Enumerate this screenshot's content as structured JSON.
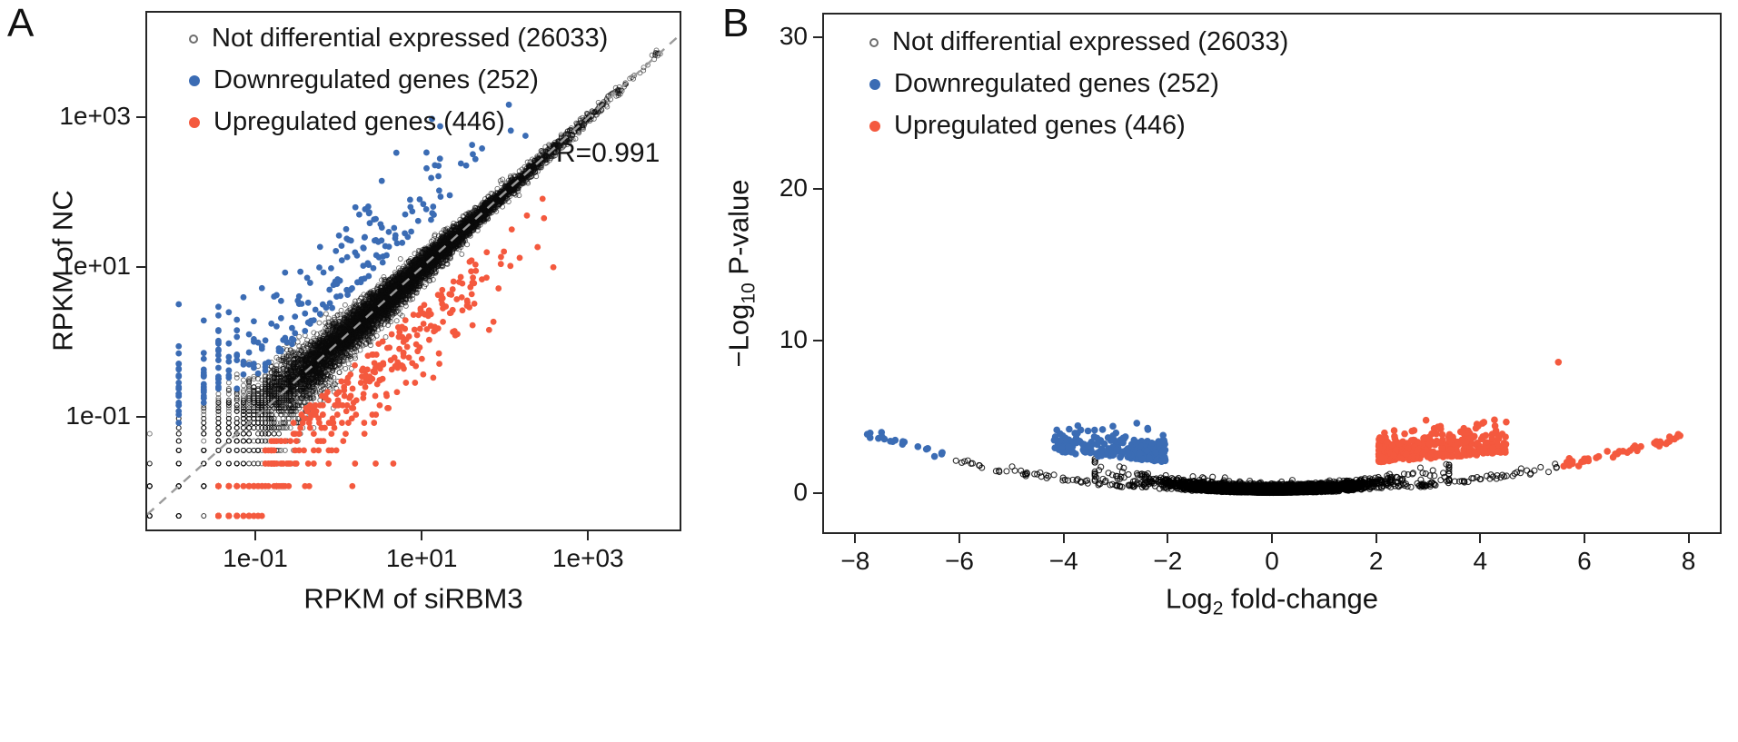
{
  "legend": {
    "items": [
      {
        "label": "Not differential expressed (26033)",
        "marker": "open",
        "color": "#000000"
      },
      {
        "label": "Downregulated genes (252)",
        "marker": "filled",
        "color": "#3b6cb4"
      },
      {
        "label": "Upregulated genes (446)",
        "marker": "filled",
        "color": "#f4593e"
      }
    ]
  },
  "panels": {
    "a": {
      "label": "A",
      "xlabel": {
        "pre": "RPKM of siRBM3"
      },
      "ylabel": {
        "pre": "RPKM of NC"
      },
      "annotation": "R=0.991",
      "x_ticks": [
        {
          "value": -1,
          "label": "1e-01"
        },
        {
          "value": 1,
          "label": "1e+01"
        },
        {
          "value": 3,
          "label": "1e+03"
        }
      ],
      "y_ticks": [
        {
          "value": -1,
          "label": "1e-01"
        },
        {
          "value": 1,
          "label": "1e+01"
        },
        {
          "value": 3,
          "label": "1e+03"
        }
      ]
    },
    "b": {
      "label": "B",
      "xlabel": {
        "pre": "Log",
        "sub": "2",
        "post": " fold-change"
      },
      "ylabel": {
        "pre": "−Log",
        "sub": "10",
        "post": " P-value"
      },
      "x_ticks": [
        {
          "value": -8,
          "label": "−8"
        },
        {
          "value": -6,
          "label": "−6"
        },
        {
          "value": -4,
          "label": "−4"
        },
        {
          "value": -2,
          "label": "−2"
        },
        {
          "value": 0,
          "label": "0"
        },
        {
          "value": 2,
          "label": "2"
        },
        {
          "value": 4,
          "label": "4"
        },
        {
          "value": 6,
          "label": "6"
        },
        {
          "value": 8,
          "label": "8"
        }
      ],
      "y_ticks": [
        {
          "value": 0,
          "label": "0"
        },
        {
          "value": 10,
          "label": "10"
        },
        {
          "value": 20,
          "label": "20"
        },
        {
          "value": 30,
          "label": "30"
        }
      ]
    }
  },
  "chart_data": [
    {
      "panel": "A",
      "type": "scatter",
      "xlabel": "RPKM of siRBM3",
      "ylabel": "RPKM of NC",
      "x_scale": "log10",
      "y_scale": "log10",
      "xlim_log10": [
        -2.3,
        4.1
      ],
      "ylim_log10": [
        -2.5,
        4.4
      ],
      "x_tick_labels": [
        "1e-01",
        "1e+01",
        "1e+03"
      ],
      "y_tick_labels": [
        "1e-01",
        "1e+01",
        "1e+03"
      ],
      "reference_line": {
        "type": "identity y=x",
        "style": "dashed",
        "color": "#9b9b9b"
      },
      "annotation": {
        "text": "R=0.991",
        "R": 0.991
      },
      "series": [
        {
          "name": "Not differential expressed",
          "count": 26033,
          "marker": "open-circle",
          "color": "#000000",
          "position": "along identity line"
        },
        {
          "name": "Downregulated genes",
          "count": 252,
          "marker": "filled-circle",
          "color": "#3b6cb4",
          "position": "above identity line (NC > siRBM3)"
        },
        {
          "name": "Upregulated genes",
          "count": 446,
          "marker": "filled-circle",
          "color": "#f4593e",
          "position": "below identity line (siRBM3 > NC)"
        }
      ],
      "sim": {
        "seed": 42,
        "n_black_render": 9000,
        "n_down": 252,
        "n_up": 446,
        "quant_unit": 0.012,
        "quant_below_log10": -0.15
      }
    },
    {
      "panel": "B",
      "type": "scatter",
      "subtype": "volcano",
      "xlabel": "Log2 fold-change",
      "ylabel": "-Log10 P-value",
      "xlim": [
        -8.6,
        8.6
      ],
      "ylim": [
        -2.6,
        31.5
      ],
      "x_tick_labels": [
        "-8",
        "-6",
        "-4",
        "-2",
        "0",
        "2",
        "4",
        "6",
        "8"
      ],
      "y_tick_labels": [
        "0",
        "10",
        "20",
        "30"
      ],
      "series": [
        {
          "name": "Not differential expressed",
          "count": 26033,
          "marker": "open-circle",
          "color": "#000000",
          "x_range": [
            -6.5,
            5.5
          ],
          "y_range": [
            0,
            2.6
          ]
        },
        {
          "name": "Downregulated genes",
          "count": 252,
          "marker": "filled-circle",
          "color": "#3b6cb4",
          "x_range": [
            -7.8,
            -2.0
          ],
          "y_range": [
            2.0,
            4.8
          ]
        },
        {
          "name": "Upregulated genes",
          "count": 446,
          "marker": "filled-circle",
          "color": "#f4593e",
          "x_range": [
            2.0,
            7.9
          ],
          "y_range": [
            2.0,
            8.6
          ]
        }
      ],
      "notable_points": [
        {
          "x": 5.5,
          "y": 8.6,
          "series": "Upregulated genes"
        }
      ],
      "sim": {
        "seed": 7,
        "n_black_render": 6500,
        "n_arm_per_side": 60,
        "n_down_cluster": 230,
        "n_down_arm": 22,
        "n_up_cluster": 400,
        "n_up_arm": 45,
        "n_up_outlier": 1
      }
    }
  ]
}
